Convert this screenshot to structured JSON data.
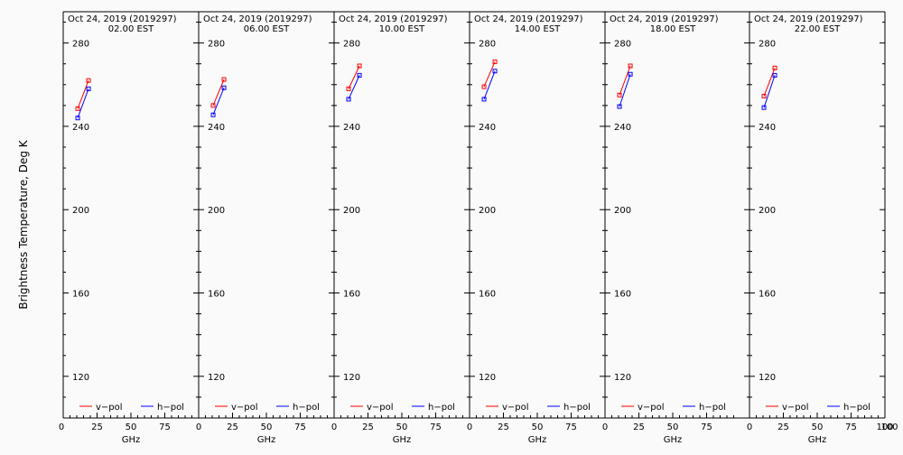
{
  "ylabel": "Brightness Temperature, Deg K",
  "xlabel": "GHz",
  "xticks": [
    "0",
    "25",
    "50",
    "75",
    "100"
  ],
  "yticks": [
    "120",
    "160",
    "200",
    "240",
    "280"
  ],
  "legend": {
    "v_label": "v−pol",
    "h_label": "h−pol"
  },
  "colors": {
    "v": "#ff0000",
    "h": "#0000ff",
    "frame": "#000000",
    "background": "#fafafa"
  },
  "chart_data": [
    {
      "type": "line",
      "title": "Oct 24, 2019 (2019297)",
      "subtitle": "02.00 EST",
      "xlim": [
        0,
        100
      ],
      "ylim": [
        100,
        295
      ],
      "series": [
        {
          "name": "v−pol",
          "x": [
            10.7,
            18.7
          ],
          "y": [
            248.5,
            262
          ]
        },
        {
          "name": "h−pol",
          "x": [
            10.7,
            18.7
          ],
          "y": [
            244,
            258
          ]
        }
      ]
    },
    {
      "type": "line",
      "title": "Oct 24, 2019 (2019297)",
      "subtitle": "06.00 EST",
      "xlim": [
        0,
        100
      ],
      "ylim": [
        100,
        295
      ],
      "series": [
        {
          "name": "v−pol",
          "x": [
            10.7,
            18.7
          ],
          "y": [
            250,
            262.5
          ]
        },
        {
          "name": "h−pol",
          "x": [
            10.7,
            18.7
          ],
          "y": [
            245.5,
            258.5
          ]
        }
      ]
    },
    {
      "type": "line",
      "title": "Oct 24, 2019 (2019297)",
      "subtitle": "10.00 EST",
      "xlim": [
        0,
        100
      ],
      "ylim": [
        100,
        295
      ],
      "series": [
        {
          "name": "v−pol",
          "x": [
            10.7,
            18.7
          ],
          "y": [
            258,
            269
          ]
        },
        {
          "name": "h−pol",
          "x": [
            10.7,
            18.7
          ],
          "y": [
            253,
            264.5
          ]
        }
      ]
    },
    {
      "type": "line",
      "title": "Oct 24, 2019 (2019297)",
      "subtitle": "14.00 EST",
      "xlim": [
        0,
        100
      ],
      "ylim": [
        100,
        295
      ],
      "series": [
        {
          "name": "v−pol",
          "x": [
            10.7,
            18.7
          ],
          "y": [
            259,
            271
          ]
        },
        {
          "name": "h−pol",
          "x": [
            10.7,
            18.7
          ],
          "y": [
            253,
            266.5
          ]
        }
      ]
    },
    {
      "type": "line",
      "title": "Oct 24, 2019 (2019297)",
      "subtitle": "18.00 EST",
      "xlim": [
        0,
        100
      ],
      "ylim": [
        100,
        295
      ],
      "series": [
        {
          "name": "v−pol",
          "x": [
            10.7,
            18.7
          ],
          "y": [
            255,
            269
          ]
        },
        {
          "name": "h−pol",
          "x": [
            10.7,
            18.7
          ],
          "y": [
            249.5,
            265
          ]
        }
      ]
    },
    {
      "type": "line",
      "title": "Oct 24, 2019 (2019297)",
      "subtitle": "22.00 EST",
      "xlim": [
        0,
        100
      ],
      "ylim": [
        100,
        295
      ],
      "series": [
        {
          "name": "v−pol",
          "x": [
            10.7,
            18.7
          ],
          "y": [
            254.5,
            268
          ]
        },
        {
          "name": "h−pol",
          "x": [
            10.7,
            18.7
          ],
          "y": [
            249,
            264.5
          ]
        }
      ]
    }
  ]
}
